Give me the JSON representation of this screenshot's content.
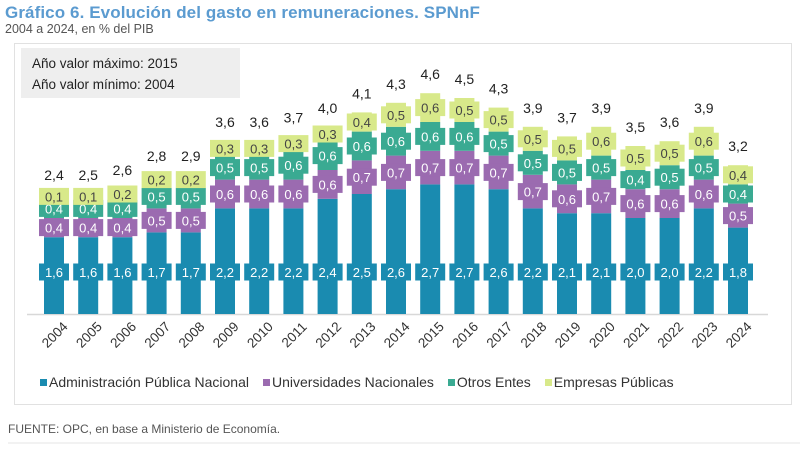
{
  "header": {
    "title": "Gráfico 6. Evolución del gasto en remuneraciones. SPNnF",
    "subtitle": "2004 a 2024, en % del PIB"
  },
  "infobox": {
    "max_line": "Año valor máximo: 2015",
    "min_line": "Año valor mínimo: 2004"
  },
  "footer": {
    "source": "FUENTE: OPC, en base a Ministerio de Economía."
  },
  "chart_data": {
    "type": "bar",
    "stacked": true,
    "title": "Gráfico 6. Evolución del gasto en remuneraciones. SPNnF",
    "subtitle": "2004 a 2024, en % del PIB",
    "xlabel": "",
    "ylabel": "",
    "ylim": [
      0,
      4.8
    ],
    "grid": false,
    "legend_position": "bottom",
    "decimal_separator": ",",
    "categories": [
      "2004",
      "2005",
      "2006",
      "2007",
      "2008",
      "2009",
      "2010",
      "2011",
      "2012",
      "2013",
      "2014",
      "2015",
      "2016",
      "2017",
      "2018",
      "2019",
      "2020",
      "2021",
      "2022",
      "2023",
      "2024"
    ],
    "series": [
      {
        "name": "Administración Pública Nacional",
        "color": "#1a8bb0",
        "label_text_color": "#ffffff",
        "values": [
          1.6,
          1.6,
          1.6,
          1.7,
          1.7,
          2.2,
          2.2,
          2.2,
          2.4,
          2.5,
          2.6,
          2.7,
          2.7,
          2.6,
          2.2,
          2.1,
          2.1,
          2.0,
          2.0,
          2.2,
          1.8
        ]
      },
      {
        "name": "Universidades Nacionales",
        "color": "#9b6bb0",
        "label_text_color": "#ffffff",
        "values": [
          0.4,
          0.4,
          0.4,
          0.5,
          0.5,
          0.6,
          0.6,
          0.6,
          0.6,
          0.7,
          0.7,
          0.7,
          0.7,
          0.7,
          0.7,
          0.6,
          0.7,
          0.6,
          0.6,
          0.6,
          0.5
        ]
      },
      {
        "name": "Otros Entes",
        "color": "#3aaa92",
        "label_text_color": "#ffffff",
        "values": [
          0.4,
          0.4,
          0.4,
          0.5,
          0.5,
          0.5,
          0.5,
          0.6,
          0.6,
          0.6,
          0.6,
          0.6,
          0.6,
          0.5,
          0.5,
          0.5,
          0.5,
          0.4,
          0.5,
          0.5,
          0.4
        ]
      },
      {
        "name": "Empresas Públicas",
        "color": "#d8e98a",
        "label_text_color": "#444444",
        "values": [
          0.1,
          0.1,
          0.2,
          0.2,
          0.2,
          0.3,
          0.3,
          0.3,
          0.3,
          0.4,
          0.5,
          0.6,
          0.5,
          0.5,
          0.5,
          0.5,
          0.6,
          0.5,
          0.5,
          0.6,
          0.4
        ]
      }
    ],
    "totals": [
      2.4,
      2.5,
      2.6,
      2.8,
      2.9,
      3.6,
      3.6,
      3.7,
      4.0,
      4.1,
      4.3,
      4.6,
      4.5,
      4.3,
      3.9,
      3.7,
      3.9,
      3.5,
      3.6,
      3.9,
      3.2
    ]
  }
}
